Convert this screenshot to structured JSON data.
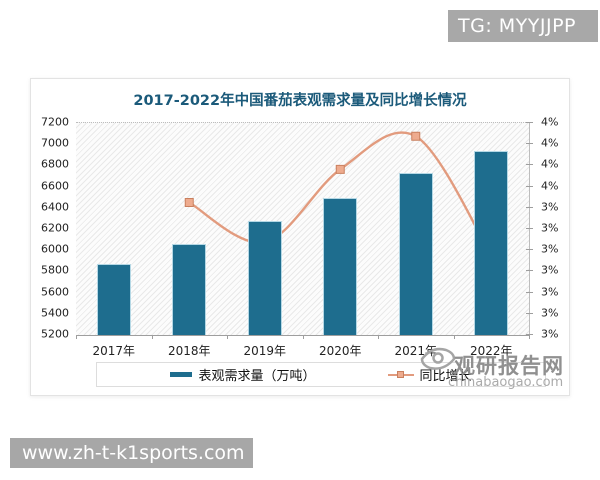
{
  "overlays": {
    "badge": "TG: MYYJJPP",
    "banner": "www.zh-t-k1sports.com"
  },
  "watermark": {
    "name": "观研报告网",
    "site": "chinabaogao.com",
    "logo": "eye-icon"
  },
  "chart": {
    "title": "2017-2022年中国番茄表观需求量及同比增长情况",
    "title_color": "#1b5a7a",
    "legend": {
      "bar_label": "表观需求量（万吨）",
      "line_label": "同比增长"
    }
  },
  "chart_data": {
    "type": "combo bar+line",
    "title": "2017-2022年中国番茄表观需求量及同比增长情况",
    "categories": [
      "2017年",
      "2018年",
      "2019年",
      "2020年",
      "2021年",
      "2022年"
    ],
    "series": [
      {
        "name": "表观需求量（万吨）",
        "type": "bar",
        "axis": "left",
        "color": "#1e6d8e",
        "values": [
          5870,
          6060,
          6280,
          6490,
          6730,
          6940
        ]
      },
      {
        "name": "同比增长",
        "type": "line",
        "axis": "right",
        "color": "#e29b7e",
        "marker": "square",
        "categories": [
          "2018年",
          "2019年",
          "2020年",
          "2021年",
          "2022年"
        ],
        "values": [
          3.5,
          3.2,
          3.75,
          4.0,
          3.1
        ],
        "note": "values estimated from plot; no data labels shown"
      }
    ],
    "left_axis": {
      "min": 5200,
      "max": 7200,
      "step": 200,
      "tick_labels": [
        "7200",
        "7000",
        "6800",
        "6600",
        "6400",
        "6200",
        "6000",
        "5800",
        "5600",
        "5400",
        "5200"
      ]
    },
    "right_axis": {
      "min": 2.5,
      "max": 4.1,
      "tick_labels": [
        "4%",
        "4%",
        "4%",
        "4%",
        "3%",
        "3%",
        "3%",
        "3%",
        "3%",
        "3%",
        "3%"
      ]
    },
    "grid": "hatched plot background, dotted top gridline only",
    "legend_position": "bottom"
  }
}
